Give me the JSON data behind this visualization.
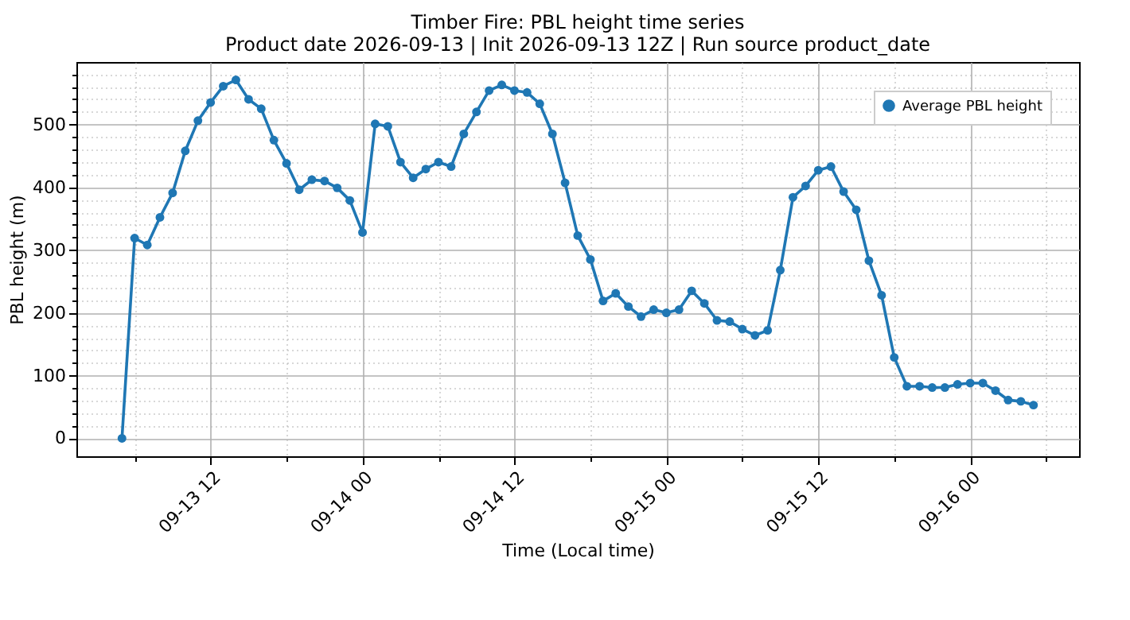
{
  "chart_data": {
    "type": "line",
    "title": "Timber Fire: PBL height time series",
    "subtitle": "Product date 2026-09-13 | Init 2026-09-13 12Z | Run source product_date",
    "xlabel": "Time (Local time)",
    "ylabel": "PBL height (m)",
    "x": [
      "2026-09-13T05:00",
      "2026-09-13T06:00",
      "2026-09-13T07:00",
      "2026-09-13T08:00",
      "2026-09-13T09:00",
      "2026-09-13T10:00",
      "2026-09-13T11:00",
      "2026-09-13T12:00",
      "2026-09-13T13:00",
      "2026-09-13T14:00",
      "2026-09-13T15:00",
      "2026-09-13T16:00",
      "2026-09-13T17:00",
      "2026-09-13T18:00",
      "2026-09-13T19:00",
      "2026-09-13T20:00",
      "2026-09-13T21:00",
      "2026-09-13T22:00",
      "2026-09-13T23:00",
      "2026-09-14T00:00",
      "2026-09-14T01:00",
      "2026-09-14T02:00",
      "2026-09-14T03:00",
      "2026-09-14T04:00",
      "2026-09-14T05:00",
      "2026-09-14T06:00",
      "2026-09-14T07:00",
      "2026-09-14T08:00",
      "2026-09-14T09:00",
      "2026-09-14T10:00",
      "2026-09-14T11:00",
      "2026-09-14T12:00",
      "2026-09-14T13:00",
      "2026-09-14T14:00",
      "2026-09-14T15:00",
      "2026-09-14T16:00",
      "2026-09-14T17:00",
      "2026-09-14T18:00",
      "2026-09-14T19:00",
      "2026-09-14T20:00",
      "2026-09-14T21:00",
      "2026-09-14T22:00",
      "2026-09-14T23:00",
      "2026-09-15T00:00",
      "2026-09-15T01:00",
      "2026-09-15T02:00",
      "2026-09-15T03:00",
      "2026-09-15T04:00",
      "2026-09-15T05:00",
      "2026-09-15T06:00",
      "2026-09-15T07:00",
      "2026-09-15T08:00",
      "2026-09-15T09:00",
      "2026-09-15T10:00",
      "2026-09-15T11:00",
      "2026-09-15T12:00",
      "2026-09-15T13:00",
      "2026-09-15T14:00",
      "2026-09-15T15:00",
      "2026-09-15T16:00",
      "2026-09-15T17:00",
      "2026-09-15T18:00",
      "2026-09-15T19:00",
      "2026-09-15T20:00",
      "2026-09-15T21:00",
      "2026-09-15T22:00",
      "2026-09-15T23:00",
      "2026-09-16T00:00",
      "2026-09-16T01:00",
      "2026-09-16T02:00",
      "2026-09-16T03:00",
      "2026-09-16T04:00",
      "2026-09-16T05:00"
    ],
    "series": [
      {
        "name": "Average PBL height",
        "color": "#1f77b4",
        "values": [
          0,
          319,
          308,
          352,
          391,
          458,
          506,
          535,
          561,
          571,
          540,
          525,
          475,
          438,
          396,
          412,
          410,
          399,
          379,
          328,
          501,
          497,
          440,
          415,
          429,
          440,
          433,
          485,
          520,
          554,
          563,
          554,
          551,
          533,
          485,
          407,
          323,
          285,
          219,
          231,
          210,
          194,
          205,
          200,
          205,
          235,
          215,
          188,
          186,
          174,
          164,
          172,
          268,
          384,
          402,
          427,
          433,
          393,
          364,
          283,
          228,
          129,
          83,
          83,
          81,
          81,
          86,
          88,
          88,
          76,
          61,
          59,
          53
        ]
      }
    ],
    "xlim": [
      "2026-09-13T01:24",
      "2026-09-16T08:36"
    ],
    "xticks": [
      {
        "value": "2026-09-13T06:00",
        "label": null
      },
      {
        "value": "2026-09-13T12:00",
        "label": "09-13 12"
      },
      {
        "value": "2026-09-13T18:00",
        "label": null
      },
      {
        "value": "2026-09-14T00:00",
        "label": "09-14 00"
      },
      {
        "value": "2026-09-14T06:00",
        "label": null
      },
      {
        "value": "2026-09-14T12:00",
        "label": "09-14 12"
      },
      {
        "value": "2026-09-14T18:00",
        "label": null
      },
      {
        "value": "2026-09-15T00:00",
        "label": "09-15 00"
      },
      {
        "value": "2026-09-15T06:00",
        "label": null
      },
      {
        "value": "2026-09-15T12:00",
        "label": "09-15 12"
      },
      {
        "value": "2026-09-15T18:00",
        "label": null
      },
      {
        "value": "2026-09-16T00:00",
        "label": "09-16 00"
      },
      {
        "value": "2026-09-16T06:00",
        "label": null
      }
    ],
    "ylim": [
      -28.5,
      599.5
    ],
    "yticks": [
      0,
      {
        "value": 20,
        "label": null
      },
      {
        "value": 40,
        "label": null
      },
      {
        "value": 60,
        "label": null
      },
      {
        "value": 80,
        "label": null
      },
      100,
      {
        "value": 120,
        "label": null
      },
      {
        "value": 140,
        "label": null
      },
      {
        "value": 160,
        "label": null
      },
      {
        "value": 180,
        "label": null
      },
      200,
      {
        "value": 220,
        "label": null
      },
      {
        "value": 240,
        "label": null
      },
      {
        "value": 260,
        "label": null
      },
      {
        "value": 280,
        "label": null
      },
      300,
      {
        "value": 320,
        "label": null
      },
      {
        "value": 340,
        "label": null
      },
      {
        "value": 360,
        "label": null
      },
      {
        "value": 380,
        "label": null
      },
      400,
      {
        "value": 420,
        "label": null
      },
      {
        "value": 440,
        "label": null
      },
      {
        "value": 460,
        "label": null
      },
      {
        "value": 480,
        "label": null
      },
      500,
      {
        "value": 520,
        "label": null
      },
      {
        "value": 540,
        "label": null
      },
      {
        "value": 560,
        "label": null
      },
      {
        "value": 580,
        "label": null
      }
    ],
    "grid": true,
    "legend": "top right",
    "marker": "circle",
    "line_style": "solid"
  }
}
